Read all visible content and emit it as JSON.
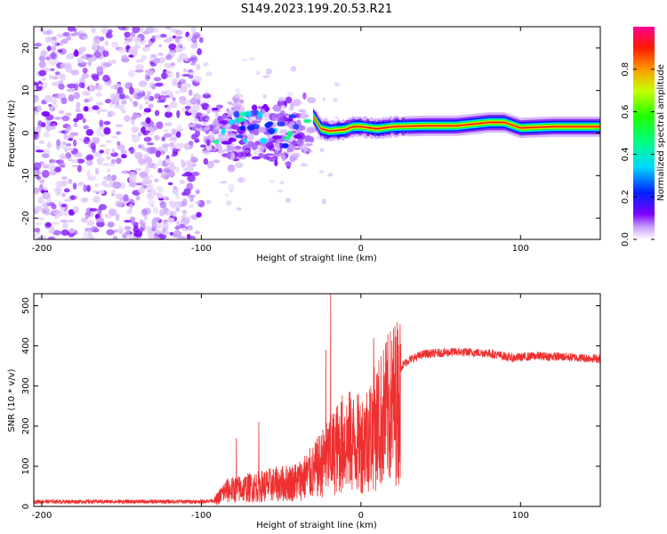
{
  "figure_title": "S149.2023.199.20.53.R21",
  "colors": {
    "snr_line": "#ee3030",
    "axis": "#000000"
  },
  "chart_data": [
    {
      "type": "heatmap",
      "name": "spectrogram",
      "xlabel": "Height of straight line (km)",
      "ylabel": "Frequency (Hz)",
      "xlim": [
        -205,
        150
      ],
      "ylim": [
        -25,
        25
      ],
      "x_ticks": [
        -200,
        -100,
        0,
        100
      ],
      "y_ticks": [
        -20,
        -10,
        0,
        10,
        20
      ],
      "x_tick_labels": [
        "-200",
        "-100",
        "0",
        "100"
      ],
      "y_tick_labels": [
        "-20",
        "-10",
        "0",
        "10",
        "20"
      ],
      "carrier_track": [
        {
          "x": -30,
          "y": 4
        },
        {
          "x": -25,
          "y": 1
        },
        {
          "x": -20,
          "y": 0.5
        },
        {
          "x": -10,
          "y": 0.8
        },
        {
          "x": -5,
          "y": 1.5
        },
        {
          "x": 0,
          "y": 1.5
        },
        {
          "x": 10,
          "y": 1
        },
        {
          "x": 20,
          "y": 1.5
        },
        {
          "x": 40,
          "y": 1.7
        },
        {
          "x": 60,
          "y": 1.7
        },
        {
          "x": 80,
          "y": 2.5
        },
        {
          "x": 90,
          "y": 2.5
        },
        {
          "x": 100,
          "y": 1.2
        },
        {
          "x": 120,
          "y": 1.5
        },
        {
          "x": 150,
          "y": 1.5
        }
      ],
      "noise_region_x": [
        -205,
        -100
      ],
      "transition_region_x": [
        -100,
        -30
      ]
    },
    {
      "type": "colorbar",
      "name": "colorbar",
      "label": "Normalized spectral amplitude",
      "range": [
        0,
        1
      ],
      "ticks": [
        0.0,
        0.2,
        0.4,
        0.6,
        0.8
      ],
      "tick_labels": [
        "0.0",
        "0.2",
        "0.4",
        "0.6",
        "0.8"
      ],
      "colormap": "gist_rainbow"
    },
    {
      "type": "line",
      "name": "snr",
      "xlabel": "Height of straight line (km)",
      "ylabel": "SNR (10 * v/v)",
      "xlim": [
        -205,
        150
      ],
      "ylim": [
        0,
        530
      ],
      "x_ticks": [
        -200,
        -100,
        0,
        100
      ],
      "y_ticks": [
        0,
        100,
        200,
        300,
        400,
        500
      ],
      "x_tick_labels": [
        "-200",
        "-100",
        "0",
        "100"
      ],
      "y_tick_labels": [
        "0",
        "100",
        "200",
        "300",
        "400",
        "500"
      ],
      "envelope": [
        {
          "x": -205,
          "y": 12
        },
        {
          "x": -100,
          "y": 12
        },
        {
          "x": -92,
          "y": 15
        },
        {
          "x": -85,
          "y": 50
        },
        {
          "x": -70,
          "y": 60
        },
        {
          "x": -55,
          "y": 70
        },
        {
          "x": -40,
          "y": 80
        },
        {
          "x": -30,
          "y": 110
        },
        {
          "x": -20,
          "y": 160
        },
        {
          "x": -10,
          "y": 210
        },
        {
          "x": 0,
          "y": 200
        },
        {
          "x": 10,
          "y": 260
        },
        {
          "x": 20,
          "y": 330
        },
        {
          "x": 30,
          "y": 365
        },
        {
          "x": 40,
          "y": 380
        },
        {
          "x": 60,
          "y": 385
        },
        {
          "x": 80,
          "y": 382
        },
        {
          "x": 95,
          "y": 370
        },
        {
          "x": 110,
          "y": 375
        },
        {
          "x": 130,
          "y": 372
        },
        {
          "x": 150,
          "y": 368
        }
      ],
      "spikes": [
        {
          "x": -19,
          "y": 530
        },
        {
          "x": -22,
          "y": 390
        },
        {
          "x": -64,
          "y": 210
        },
        {
          "x": -78,
          "y": 170
        },
        {
          "x": 8,
          "y": 420
        },
        {
          "x": 12,
          "y": 90
        }
      ]
    }
  ]
}
